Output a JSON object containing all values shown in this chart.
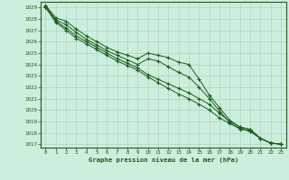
{
  "title": "Graphe pression niveau de la mer (hPa)",
  "background_color": "#cceedd",
  "grid_color": "#b0d4c4",
  "line_color": "#1a5c1a",
  "xlim": [
    0,
    23
  ],
  "ylim": [
    1017,
    1029
  ],
  "xticks": [
    0,
    1,
    2,
    3,
    4,
    5,
    6,
    7,
    8,
    9,
    10,
    11,
    12,
    13,
    14,
    15,
    16,
    17,
    18,
    19,
    20,
    21,
    22,
    23
  ],
  "yticks": [
    1017,
    1018,
    1019,
    1020,
    1021,
    1022,
    1023,
    1024,
    1025,
    1026,
    1027,
    1028,
    1029
  ],
  "series": [
    [
      1029.2,
      1028.1,
      1027.8,
      1027.1,
      1026.5,
      1026.0,
      1025.5,
      1025.1,
      1024.8,
      1024.5,
      1025.0,
      1024.8,
      1024.6,
      1024.2,
      1024.0,
      1022.7,
      1021.3,
      1020.2,
      1019.1,
      1018.5,
      1018.3,
      1017.5,
      1017.1,
      1017.0
    ],
    [
      1029.1,
      1027.9,
      1027.5,
      1026.8,
      1026.2,
      1025.7,
      1025.2,
      1024.8,
      1024.4,
      1024.0,
      1024.5,
      1024.3,
      1023.8,
      1023.3,
      1022.9,
      1022.0,
      1021.0,
      1019.9,
      1018.9,
      1018.3,
      1018.2,
      1017.5,
      1017.1,
      1017.0
    ],
    [
      1029.0,
      1027.8,
      1027.2,
      1026.5,
      1026.0,
      1025.5,
      1025.0,
      1024.5,
      1024.1,
      1023.7,
      1023.1,
      1022.7,
      1022.3,
      1021.9,
      1021.5,
      1021.0,
      1020.5,
      1019.7,
      1019.0,
      1018.5,
      1018.3,
      1017.5,
      1017.1,
      1017.0
    ],
    [
      1029.0,
      1027.7,
      1027.0,
      1026.3,
      1025.8,
      1025.3,
      1024.8,
      1024.3,
      1023.9,
      1023.5,
      1022.9,
      1022.4,
      1021.9,
      1021.4,
      1021.0,
      1020.5,
      1020.0,
      1019.3,
      1018.8,
      1018.4,
      1018.1,
      1017.5,
      1017.1,
      1017.0
    ]
  ]
}
